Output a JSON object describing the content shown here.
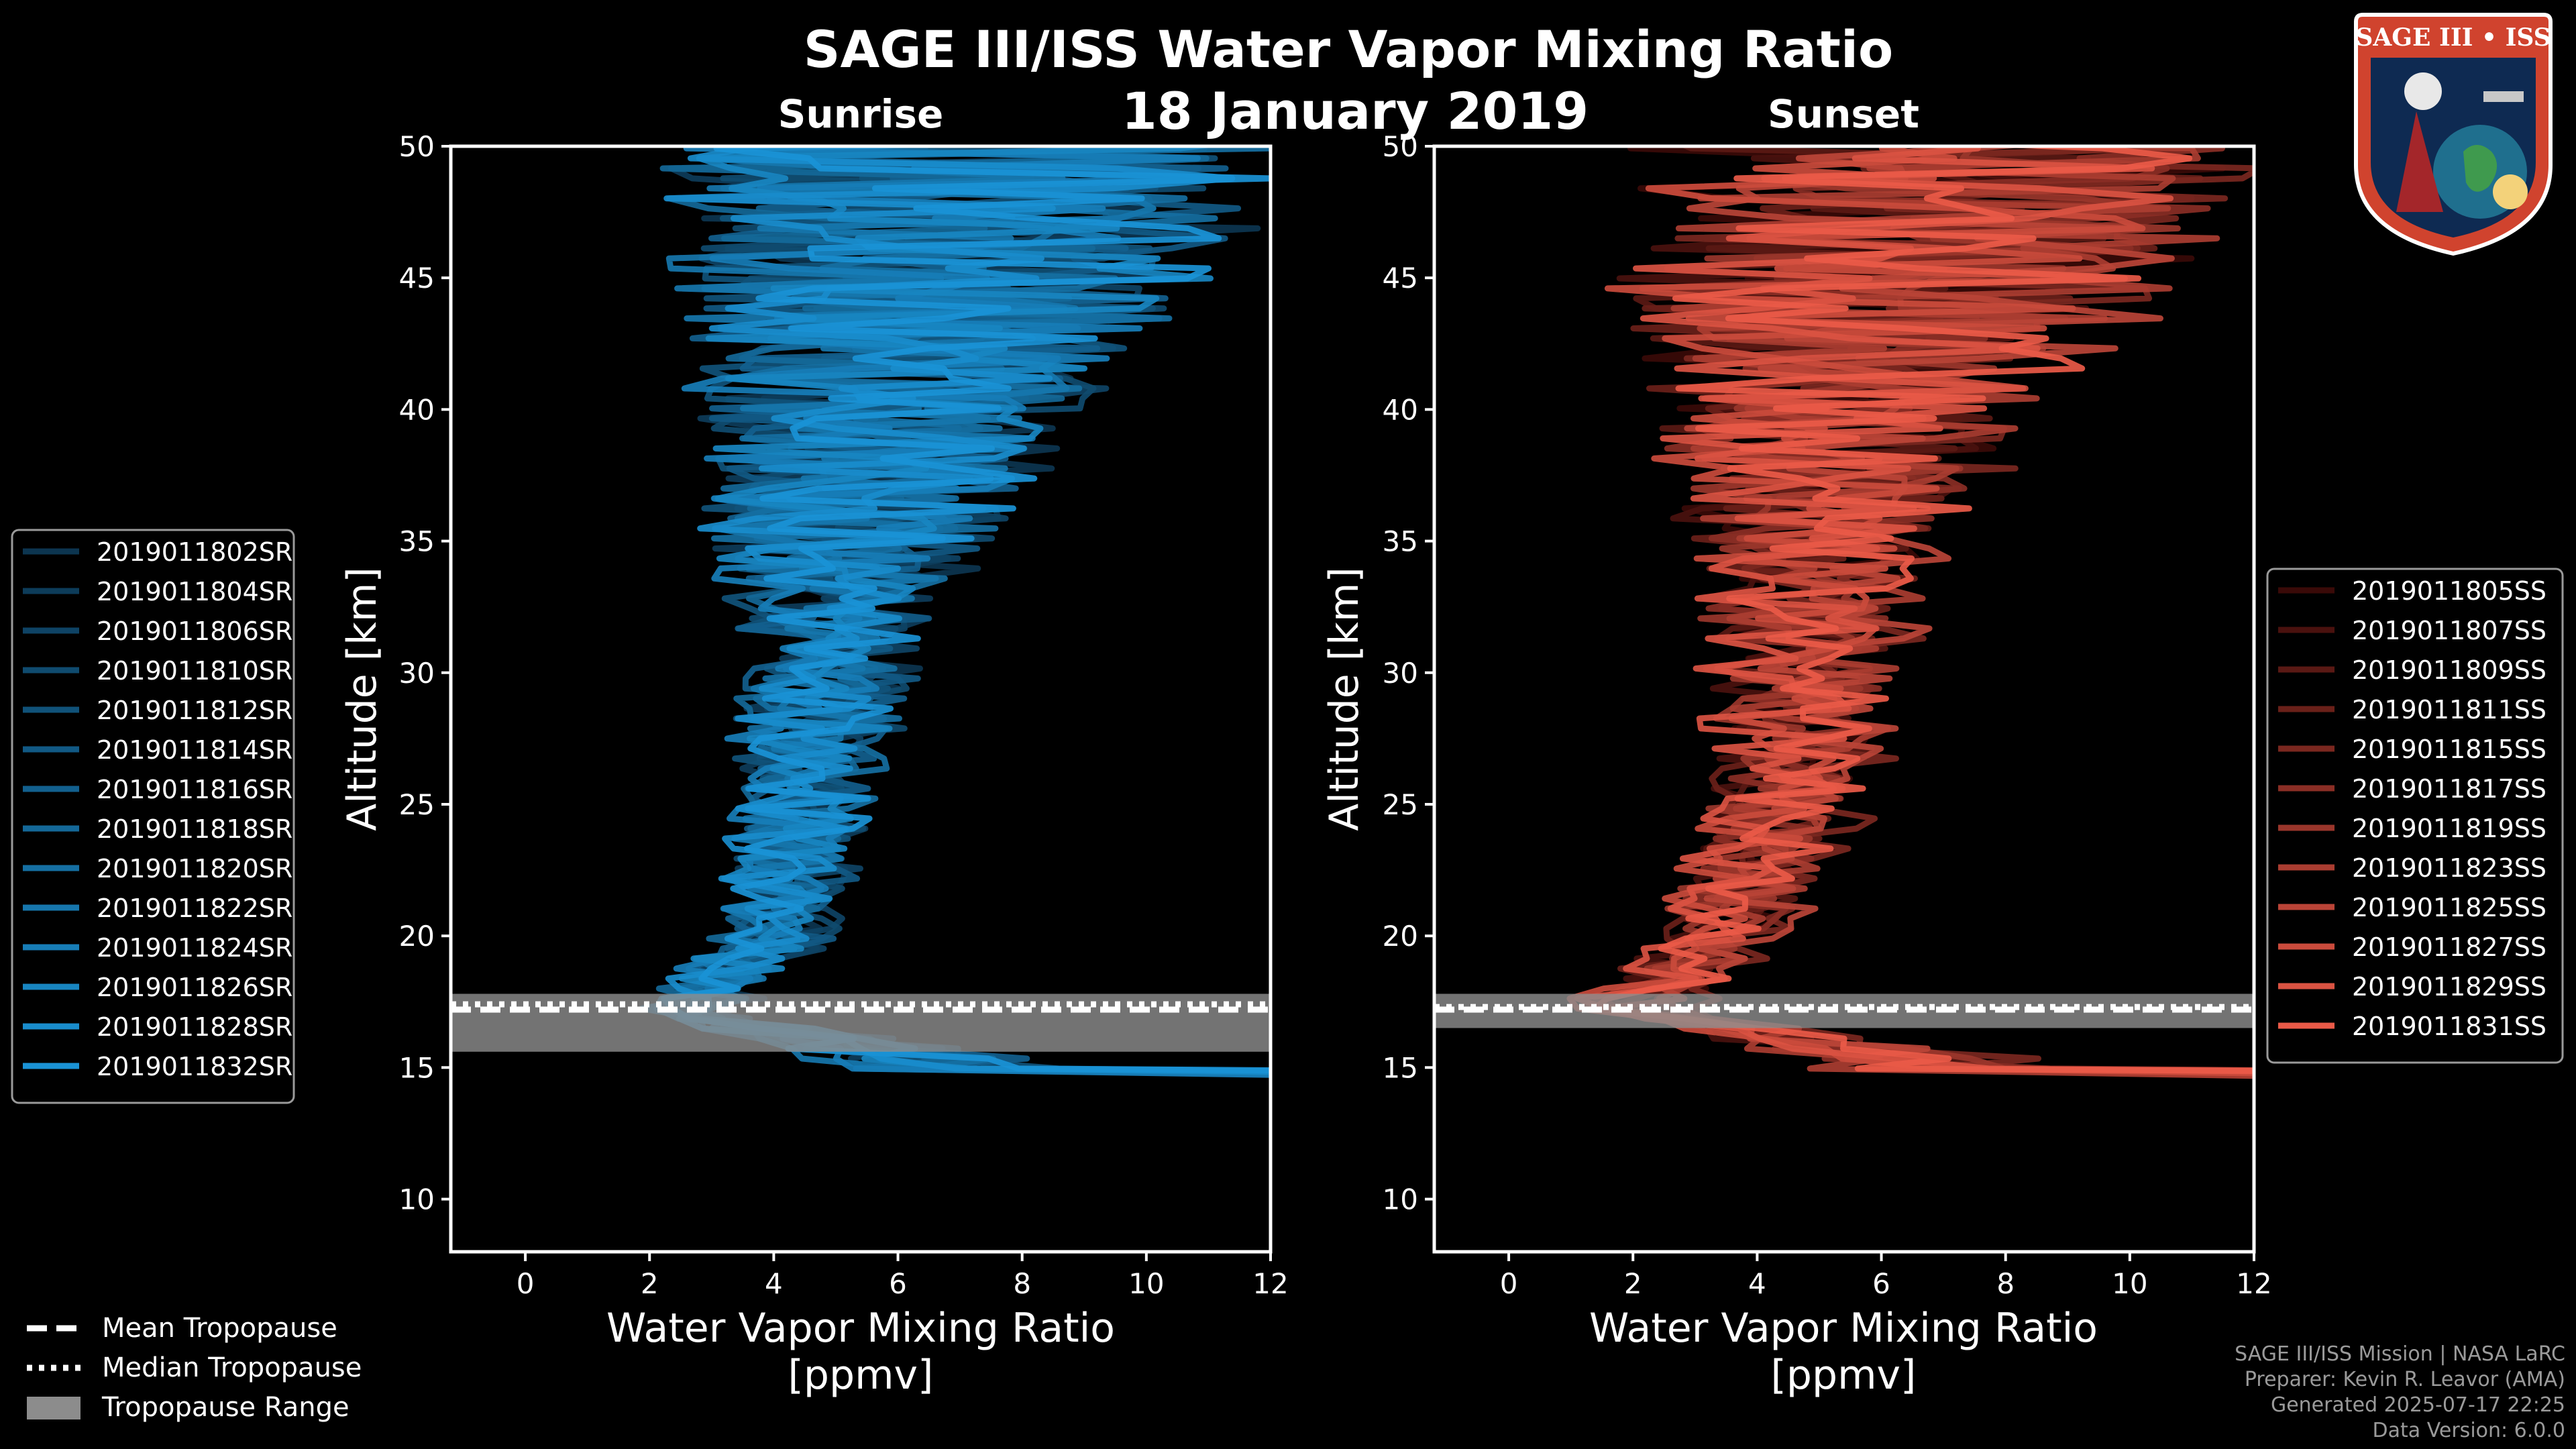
{
  "figure": {
    "title": "SAGE III/ISS Water Vapor Mixing Ratio",
    "date": "18 January 2019",
    "badge_text": "SAGE III • ISS"
  },
  "legend_bottom": [
    {
      "label": "Mean Tropopause",
      "style": "dashed"
    },
    {
      "label": "Median Tropopause",
      "style": "dotted"
    },
    {
      "label": "Tropopause Range",
      "style": "patch"
    }
  ],
  "footer": {
    "line1": "SAGE III/ISS Mission | NASA LaRC",
    "line2": "Preparer: Kevin R. Leavor (AMA)",
    "line3": "Generated 2025-07-17 22:25",
    "line4": "Data Version: 6.0.0"
  },
  "chart_data": [
    {
      "type": "line",
      "panel": "sunrise",
      "subtitle": "Sunrise",
      "xlabel": "Water Vapor Mixing Ratio\n[ppmv]",
      "ylabel": "Altitude [km]",
      "xlim": [
        -1.2,
        12
      ],
      "ylim": [
        8,
        50
      ],
      "xticks": [
        0,
        2,
        4,
        6,
        8,
        10,
        12
      ],
      "yticks": [
        10,
        15,
        20,
        25,
        30,
        35,
        40,
        45,
        50
      ],
      "color_dark": "#0c3550",
      "color_light": "#1a93d6",
      "legend_position": "left",
      "tropopause": {
        "mean": 17.2,
        "median": 17.4,
        "min": 15.6,
        "max": 17.8
      },
      "series": [
        {
          "name": "2019011802SR",
          "seed": 11
        },
        {
          "name": "2019011804SR",
          "seed": 23
        },
        {
          "name": "2019011806SR",
          "seed": 37
        },
        {
          "name": "2019011810SR",
          "seed": 41
        },
        {
          "name": "2019011812SR",
          "seed": 53
        },
        {
          "name": "2019011814SR",
          "seed": 67
        },
        {
          "name": "2019011816SR",
          "seed": 71
        },
        {
          "name": "2019011818SR",
          "seed": 83
        },
        {
          "name": "2019011820SR",
          "seed": 97
        },
        {
          "name": "2019011822SR",
          "seed": 101
        },
        {
          "name": "2019011824SR",
          "seed": 113
        },
        {
          "name": "2019011826SR",
          "seed": 127
        },
        {
          "name": "2019011828SR",
          "seed": 131
        },
        {
          "name": "2019011832SR",
          "seed": 149
        }
      ],
      "profile": {
        "center_alt": [
          [
            17,
            2.3
          ],
          [
            18,
            2.8
          ],
          [
            20,
            3.8
          ],
          [
            25,
            4.3
          ],
          [
            30,
            4.7
          ],
          [
            35,
            5.0
          ],
          [
            40,
            5.6
          ],
          [
            45,
            6.6
          ],
          [
            50,
            7.0
          ]
        ],
        "noise_alt": [
          [
            17,
            0.8
          ],
          [
            20,
            0.9
          ],
          [
            25,
            1.1
          ],
          [
            30,
            1.4
          ],
          [
            35,
            2.2
          ],
          [
            40,
            3.2
          ],
          [
            45,
            4.5
          ],
          [
            50,
            5.0
          ]
        ]
      }
    },
    {
      "type": "line",
      "panel": "sunset",
      "subtitle": "Sunset",
      "xlabel": "Water Vapor Mixing Ratio\n[ppmv]",
      "ylabel": "Altitude [km]",
      "xlim": [
        -1.2,
        12
      ],
      "ylim": [
        8,
        50
      ],
      "xticks": [
        0,
        2,
        4,
        6,
        8,
        10,
        12
      ],
      "yticks": [
        10,
        15,
        20,
        25,
        30,
        35,
        40,
        45,
        50
      ],
      "color_dark": "#3a0a08",
      "color_light": "#ea5a48",
      "legend_position": "right",
      "tropopause": {
        "mean": 17.2,
        "median": 17.3,
        "min": 16.5,
        "max": 17.8
      },
      "series": [
        {
          "name": "2019011805SS",
          "seed": 13
        },
        {
          "name": "2019011807SS",
          "seed": 29
        },
        {
          "name": "2019011809SS",
          "seed": 31
        },
        {
          "name": "2019011811SS",
          "seed": 43
        },
        {
          "name": "2019011815SS",
          "seed": 59
        },
        {
          "name": "2019011817SS",
          "seed": 61
        },
        {
          "name": "2019011819SS",
          "seed": 73
        },
        {
          "name": "2019011823SS",
          "seed": 79
        },
        {
          "name": "2019011825SS",
          "seed": 89
        },
        {
          "name": "2019011827SS",
          "seed": 103
        },
        {
          "name": "2019011829SS",
          "seed": 107
        },
        {
          "name": "2019011831SS",
          "seed": 109
        }
      ],
      "profile": {
        "center_alt": [
          [
            17,
            1.8
          ],
          [
            18,
            2.5
          ],
          [
            20,
            3.5
          ],
          [
            25,
            4.6
          ],
          [
            30,
            4.8
          ],
          [
            35,
            5.1
          ],
          [
            40,
            5.4
          ],
          [
            45,
            6.5
          ],
          [
            50,
            7.0
          ]
        ],
        "noise_alt": [
          [
            17,
            0.8
          ],
          [
            20,
            0.9
          ],
          [
            25,
            1.1
          ],
          [
            30,
            1.4
          ],
          [
            35,
            2.0
          ],
          [
            40,
            3.0
          ],
          [
            45,
            4.5
          ],
          [
            50,
            5.0
          ]
        ]
      }
    }
  ]
}
